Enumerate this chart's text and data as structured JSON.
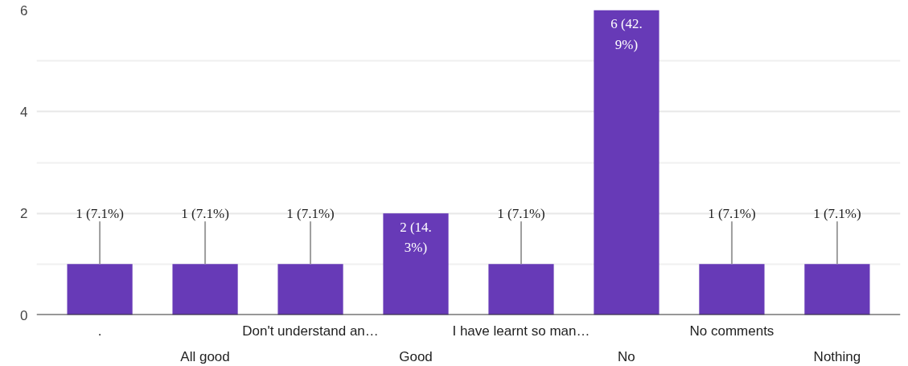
{
  "chart_data": {
    "type": "bar",
    "categories": [
      ".",
      "All good",
      "Don't understand an…",
      "Good",
      "I have learnt so man…",
      "No",
      "No comments",
      "Nothing"
    ],
    "values": [
      1,
      1,
      1,
      2,
      1,
      6,
      1,
      1
    ],
    "color": "#673ab7",
    "value_labels": [
      "1 (7.1%)",
      "1 (7.1%)",
      "1 (7.1%)",
      "2 (14.3%)",
      "1 (7.1%)",
      "6 (42.9%)",
      "1 (7.1%)",
      "1 (7.1%)"
    ],
    "ylim": [
      0,
      6
    ],
    "yticks": [
      0,
      2,
      4,
      6
    ],
    "grid": "y"
  }
}
